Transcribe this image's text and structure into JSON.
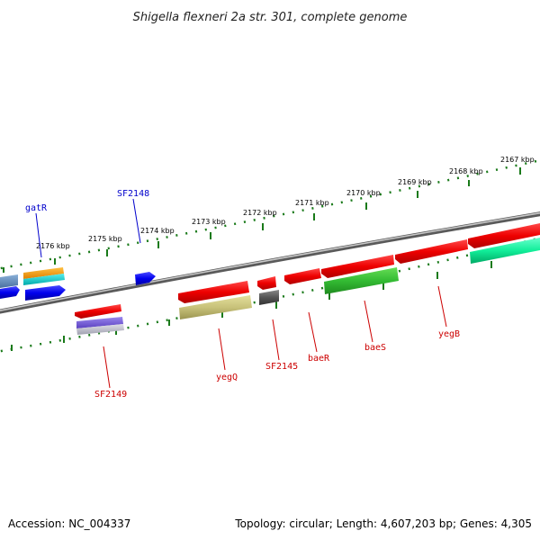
{
  "title": "Shigella flexneri 2a str. 301, complete genome",
  "footer": {
    "accession": "Accession: NC_004337",
    "topology": "Topology: circular; Length: 4,607,203 bp; Genes: 4,305"
  },
  "ticks": [
    "2167 kbp",
    "2168 kbp",
    "2169 kbp",
    "2170 kbp",
    "2171 kbp",
    "2172 kbp",
    "2173 kbp",
    "2174 kbp",
    "2175 kbp",
    "2176 kbp"
  ],
  "gene_labels": {
    "gatR": "gatR",
    "SF2148": "SF2148",
    "SF2149": "SF2149",
    "yegQ": "yegQ",
    "SF2145": "SF2145",
    "baeR": "baeR",
    "baeS": "baeS",
    "yegB": "yegB"
  },
  "colors": {
    "forward_label": "#0000cc",
    "reverse_label": "#cc0000",
    "ticks": "#1a7a1a",
    "backbone": "#777777"
  }
}
